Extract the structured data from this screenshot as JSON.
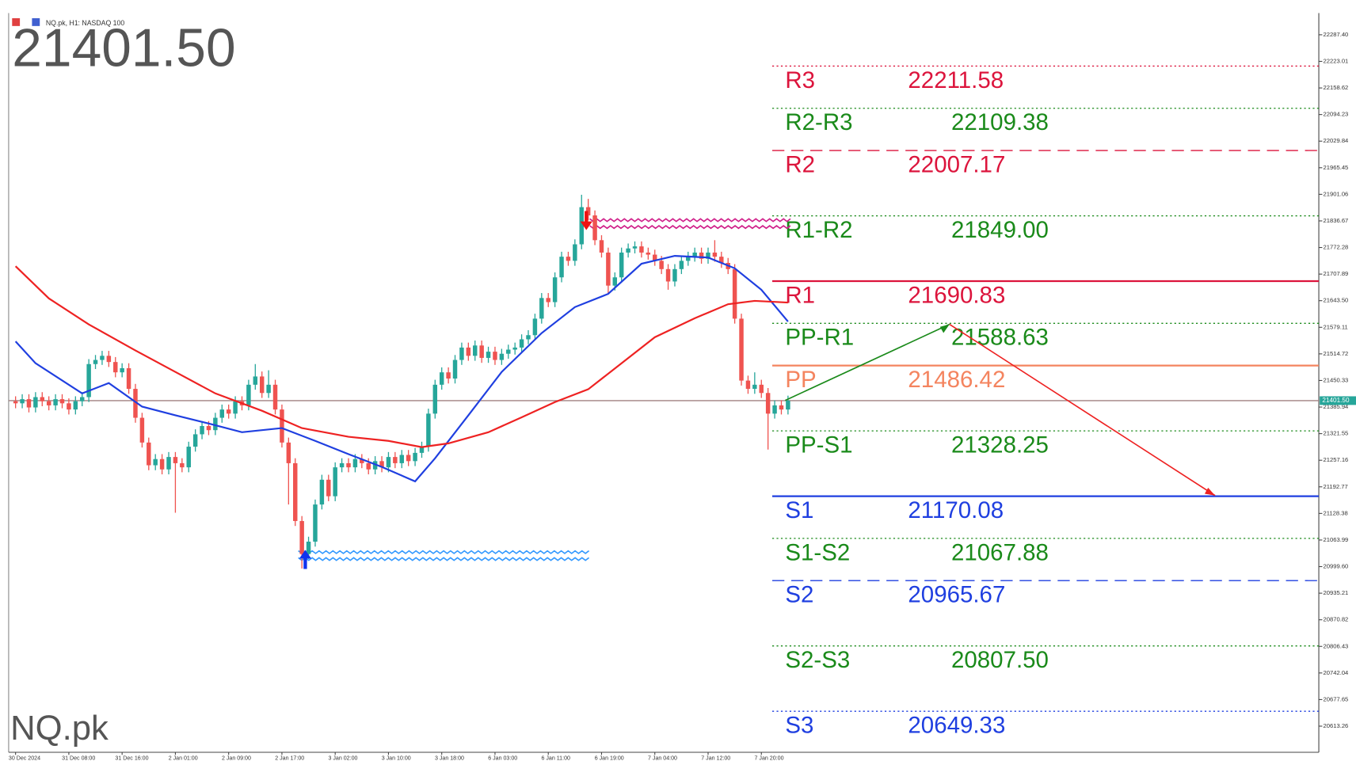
{
  "chart_data": {
    "type": "candlestick",
    "title": "NQ.pk, H1:  NASDAQ 100",
    "symbol": "NQ.pk",
    "last": {
      "value": 21401.5,
      "label": "21401.50"
    },
    "ylim": [
      20550,
      22340
    ],
    "yticks": [
      {
        "value": 22287.4,
        "label": "22287.40"
      },
      22223.01,
      22158.62,
      22094.23,
      22029.84,
      21965.45,
      21901.06,
      21836.67,
      21772.28,
      21707.89,
      {
        "value": 21643.5,
        "label": "21643.50"
      },
      21579.11,
      21514.72,
      21450.33,
      21385.94,
      21321.55,
      21257.16,
      21192.77,
      21128.38,
      21063.99,
      {
        "value": 20999.6,
        "label": "20999.60"
      },
      20935.21,
      20870.82,
      20806.43,
      20742.04,
      20677.65,
      20613.26
    ],
    "xlabels": [
      "30 Dec 2024",
      "31 Dec 08:00",
      "31 Dec 16:00",
      "2 Jan 01:00",
      "2 Jan 09:00",
      "2 Jan 17:00",
      "3 Jan 02:00",
      "3 Jan 10:00",
      "3 Jan 18:00",
      "6 Jan 03:00",
      "6 Jan 11:00",
      "6 Jan 19:00",
      "7 Jan 04:00",
      "7 Jan 12:00",
      "7 Jan 20:00"
    ],
    "up_color": "#26a69a",
    "down_color": "#ef5350",
    "open": [
      21400,
      21395,
      21405,
      21385,
      21410,
      21400,
      21390,
      21405,
      21395,
      21380,
      21400,
      21410,
      21490,
      21500,
      21510,
      21495,
      21470,
      21480,
      21430,
      21360,
      21300,
      21245,
      21260,
      21235,
      21265,
      21250,
      21240,
      21290,
      21320,
      21340,
      21330,
      21360,
      21380,
      21370,
      21400,
      21390,
      21440,
      21460,
      21420,
      21440,
      21380,
      21300,
      21250,
      21110,
      21030,
      21060,
      21150,
      21210,
      21170,
      21240,
      21250,
      21240,
      21260,
      21250,
      21235,
      21255,
      21240,
      21265,
      21250,
      21270,
      21255,
      21275,
      21290,
      21370,
      21440,
      21470,
      21455,
      21500,
      21530,
      21510,
      21535,
      21505,
      21520,
      21500,
      21515,
      21525,
      21530,
      21550,
      21560,
      21600,
      21650,
      21640,
      21700,
      21750,
      21740,
      21780,
      21870,
      21850,
      21790,
      21760,
      21680,
      21700,
      21760,
      21770,
      21775,
      21760,
      21755,
      21740,
      21720,
      21690,
      21720,
      21740,
      21750,
      21760,
      21745,
      21760,
      21750,
      21735,
      21720,
      21600,
      21450,
      21430,
      21440,
      21420,
      21370,
      21390,
      21380
    ],
    "high": [
      21412,
      21417,
      21417,
      21422,
      21422,
      21412,
      21417,
      21417,
      21407,
      21412,
      21422,
      21502,
      21512,
      21522,
      21522,
      21507,
      21492,
      21492,
      21442,
      21372,
      21312,
      21272,
      21272,
      21277,
      21277,
      21262,
      21302,
      21332,
      21352,
      21352,
      21372,
      21392,
      21392,
      21412,
      21412,
      21452,
      21490,
      21472,
      21475,
      21452,
      21392,
      21312,
      21262,
      21122,
      21072,
      21162,
      21222,
      21222,
      21252,
      21262,
      21262,
      21272,
      21272,
      21262,
      21267,
      21267,
      21277,
      21277,
      21282,
      21282,
      21287,
      21302,
      21382,
      21452,
      21482,
      21482,
      21512,
      21542,
      21542,
      21547,
      21547,
      21532,
      21532,
      21527,
      21537,
      21542,
      21562,
      21572,
      21612,
      21662,
      21662,
      21712,
      21762,
      21762,
      21792,
      21900,
      21890,
      21862,
      21802,
      21772,
      21712,
      21772,
      21782,
      21787,
      21787,
      21772,
      21767,
      21752,
      21732,
      21732,
      21752,
      21762,
      21772,
      21772,
      21772,
      21790,
      21762,
      21747,
      21732,
      21612,
      21462,
      21470,
      21452,
      21432,
      21402,
      21402,
      21413.5
    ],
    "low": [
      21383,
      21383,
      21373,
      21373,
      21388,
      21378,
      21378,
      21383,
      21368,
      21368,
      21388,
      21398,
      21478,
      21488,
      21483,
      21458,
      21458,
      21418,
      21348,
      21288,
      21233,
      21233,
      21223,
      21223,
      21130,
      21228,
      21228,
      21278,
      21308,
      21318,
      21318,
      21348,
      21358,
      21358,
      21378,
      21378,
      21428,
      21408,
      21408,
      21368,
      21288,
      21150,
      21098,
      20995,
      21018,
      21048,
      21138,
      21158,
      21158,
      21228,
      21228,
      21228,
      21238,
      21223,
      21223,
      21228,
      21228,
      21238,
      21238,
      21243,
      21243,
      21263,
      21278,
      21358,
      21428,
      21443,
      21443,
      21488,
      21498,
      21498,
      21493,
      21493,
      21488,
      21488,
      21503,
      21513,
      21518,
      21538,
      21548,
      21588,
      21628,
      21628,
      21688,
      21728,
      21728,
      21768,
      21838,
      21778,
      21748,
      21660,
      21668,
      21688,
      21748,
      21758,
      21748,
      21743,
      21728,
      21708,
      21670,
      21678,
      21708,
      21728,
      21738,
      21733,
      21733,
      21738,
      21723,
      21708,
      21588,
      21438,
      21418,
      21418,
      21408,
      21283,
      21358,
      21368,
      21368
    ],
    "close": [
      21395,
      21405,
      21385,
      21410,
      21400,
      21390,
      21405,
      21395,
      21380,
      21400,
      21410,
      21490,
      21500,
      21510,
      21495,
      21470,
      21480,
      21430,
      21360,
      21300,
      21245,
      21260,
      21235,
      21265,
      21250,
      21240,
      21290,
      21320,
      21340,
      21330,
      21360,
      21380,
      21370,
      21400,
      21390,
      21440,
      21460,
      21420,
      21440,
      21380,
      21300,
      21250,
      21110,
      21030,
      21060,
      21150,
      21210,
      21170,
      21240,
      21250,
      21240,
      21260,
      21250,
      21235,
      21255,
      21240,
      21265,
      21250,
      21270,
      21255,
      21275,
      21290,
      21370,
      21440,
      21470,
      21455,
      21500,
      21530,
      21510,
      21535,
      21505,
      21520,
      21500,
      21515,
      21525,
      21530,
      21550,
      21560,
      21600,
      21650,
      21640,
      21700,
      21750,
      21740,
      21780,
      21870,
      21850,
      21790,
      21760,
      21680,
      21700,
      21760,
      21770,
      21775,
      21760,
      21755,
      21740,
      21720,
      21690,
      21720,
      21740,
      21750,
      21760,
      21745,
      21760,
      21750,
      21735,
      21720,
      21600,
      21450,
      21430,
      21440,
      21420,
      21370,
      21390,
      21380,
      21401.5
    ],
    "lines": [
      {
        "color": "#1f3fe0",
        "x": [
          0,
          3,
          10,
          14,
          19,
          24,
          29,
          34,
          40,
          45,
          50,
          55,
          60,
          63,
          68,
          73,
          79,
          84,
          89,
          94,
          99,
          104,
          108,
          112,
          116
        ],
        "values": [
          21545,
          21492,
          21419,
          21444,
          21387,
          21366,
          21346,
          21325,
          21335,
          21304,
          21272,
          21241,
          21206,
          21262,
          21366,
          21471,
          21565,
          21628,
          21660,
          21733,
          21752,
          21748,
          21722,
          21670,
          21593
        ]
      },
      {
        "color": "#ee2222",
        "x": [
          0,
          5,
          11,
          18,
          24,
          30,
          37,
          43,
          50,
          56,
          61,
          65,
          71,
          76,
          81,
          86,
          91,
          96,
          102,
          107,
          111,
          116
        ],
        "values": [
          21727,
          21649,
          21586,
          21523,
          21471,
          21419,
          21377,
          21335,
          21314,
          21304,
          21289,
          21298,
          21325,
          21361,
          21398,
          21429,
          21492,
          21555,
          21601,
          21635,
          21643,
          21639
        ]
      }
    ],
    "levels": [
      {
        "name": "R3",
        "value": 22211.58,
        "color": "#dc143c",
        "style": "dotted",
        "kind": "main"
      },
      {
        "name": "R2-R3",
        "value": 22109.38,
        "color": "#1a8a1a",
        "style": "dotted",
        "kind": "mid"
      },
      {
        "name": "R2",
        "value": 22007.17,
        "color": "#dc143c",
        "style": "dashed",
        "kind": "main"
      },
      {
        "name": "R1-R2",
        "value": {
          "value": 21849,
          "label": "21849.00"
        },
        "color": "#1a8a1a",
        "style": "dotted",
        "kind": "mid"
      },
      {
        "name": "R1",
        "value": 21690.83,
        "color": "#dc143c",
        "style": "solid",
        "kind": "main"
      },
      {
        "name": "PP-R1",
        "value": 21588.63,
        "color": "#1a8a1a",
        "style": "dotted",
        "kind": "mid"
      },
      {
        "name": "PP",
        "value": 21486.42,
        "color": "#f4845f",
        "style": "solid",
        "kind": "main"
      },
      {
        "name": "PP-S1",
        "value": 21328.25,
        "color": "#1a8a1a",
        "style": "dotted",
        "kind": "mid"
      },
      {
        "name": "S1",
        "value": 21170.08,
        "color": "#1f3fe0",
        "style": "solid",
        "kind": "main"
      },
      {
        "name": "S1-S2",
        "value": 21067.88,
        "color": "#1a8a1a",
        "style": "dotted",
        "kind": "mid"
      },
      {
        "name": "S2",
        "value": 20965.67,
        "color": "#1f3fe0",
        "style": "dashed",
        "kind": "main"
      },
      {
        "name": "S2-S3",
        "value": {
          "value": 20807.5,
          "label": "20807.50"
        },
        "color": "#1a8a1a",
        "style": "dotted",
        "kind": "mid"
      },
      {
        "name": "S3",
        "value": 20649.33,
        "color": "#1f3fe0",
        "style": "dotted",
        "kind": "main"
      }
    ]
  }
}
